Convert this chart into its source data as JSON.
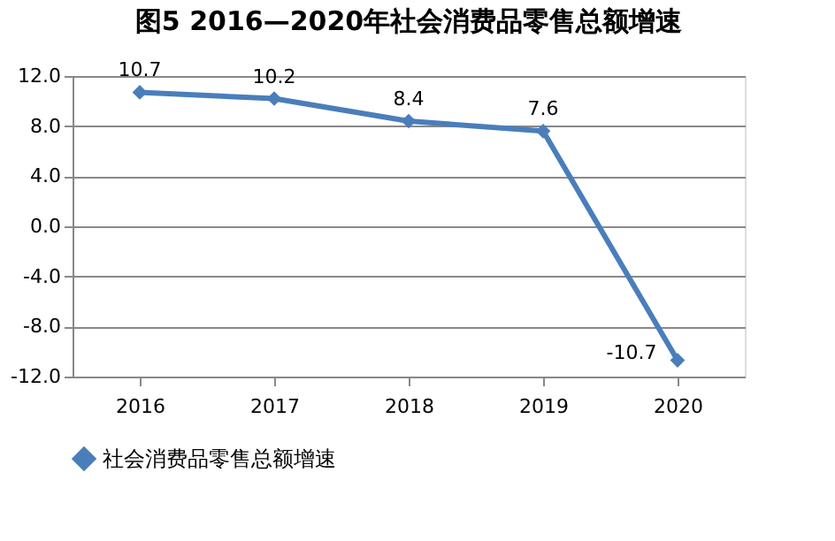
{
  "chart_data": {
    "type": "line",
    "title": "图5  2016—2020年社会消费品零售总额增速",
    "categories": [
      "2016",
      "2017",
      "2018",
      "2019",
      "2020"
    ],
    "series": [
      {
        "name": "社会消费品零售总额增速",
        "color": "#4a7ebb",
        "values": [
          10.7,
          10.2,
          8.4,
          7.6,
          -10.7
        ]
      }
    ],
    "ylim": [
      -12,
      12
    ],
    "yticks": [
      {
        "value": -12,
        "label": "-12.0"
      },
      {
        "value": -8,
        "label": "-8.0"
      },
      {
        "value": -4,
        "label": "-4.0"
      },
      {
        "value": 0,
        "label": "0.0"
      },
      {
        "value": 4,
        "label": "4.0"
      },
      {
        "value": 8,
        "label": "8.0"
      },
      {
        "value": 12,
        "label": "12.0"
      }
    ],
    "grid": "y",
    "legend": "bottom",
    "marker": "diamond",
    "line_style": "solid",
    "data_labels": true
  }
}
